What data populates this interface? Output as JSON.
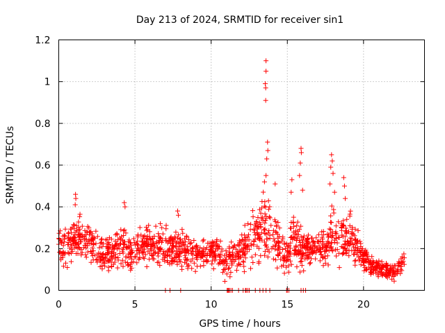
{
  "chart_data": {
    "type": "scatter",
    "title": "Day 213 of 2024, SRMTID for receiver sin1",
    "xlabel": "GPS time / hours",
    "ylabel": "SRMTID / TECUs",
    "xlim": [
      0,
      24
    ],
    "ylim": [
      0,
      1.2
    ],
    "x_ticks": [
      0,
      5,
      10,
      15,
      20
    ],
    "x_tick_labels": [
      "0",
      "5",
      "10",
      "15",
      "20"
    ],
    "y_ticks": [
      0,
      0.2,
      0.4,
      0.6,
      0.8,
      1.0,
      1.2
    ],
    "y_tick_labels": [
      "0",
      "0.2",
      "0.4",
      "0.6",
      "0.8",
      "1",
      "1.2"
    ],
    "grid": true,
    "marker": "+",
    "series": [
      {
        "name": "sin1",
        "color": "#ff0000",
        "profile": {
          "hours": [
            0,
            0.5,
            1.0,
            1.2,
            1.5,
            2.0,
            2.5,
            3.0,
            3.5,
            4.0,
            4.3,
            4.6,
            5.0,
            5.5,
            6.0,
            6.5,
            7.0,
            7.5,
            8.0,
            8.5,
            9.0,
            9.5,
            10.0,
            10.5,
            11.0,
            11.5,
            12.0,
            12.5,
            13.0,
            13.3,
            13.6,
            13.9,
            14.2,
            14.5,
            14.8,
            15.0,
            15.3,
            15.6,
            15.9,
            16.2,
            16.5,
            17.0,
            17.5,
            17.9,
            18.3,
            18.7,
            19.0,
            19.5,
            20.0,
            20.5,
            21.0,
            21.5,
            22.0,
            22.5,
            22.7
          ],
          "median": [
            0.2,
            0.22,
            0.26,
            0.28,
            0.26,
            0.24,
            0.2,
            0.18,
            0.18,
            0.2,
            0.22,
            0.17,
            0.2,
            0.22,
            0.21,
            0.2,
            0.21,
            0.2,
            0.2,
            0.19,
            0.18,
            0.18,
            0.19,
            0.19,
            0.12,
            0.17,
            0.2,
            0.22,
            0.26,
            0.3,
            0.34,
            0.3,
            0.26,
            0.2,
            0.16,
            0.18,
            0.24,
            0.22,
            0.2,
            0.2,
            0.2,
            0.2,
            0.22,
            0.28,
            0.26,
            0.24,
            0.26,
            0.22,
            0.16,
            0.12,
            0.11,
            0.1,
            0.09,
            0.12,
            0.14
          ],
          "spread": [
            0.06,
            0.06,
            0.06,
            0.07,
            0.06,
            0.05,
            0.06,
            0.06,
            0.05,
            0.06,
            0.08,
            0.06,
            0.05,
            0.06,
            0.06,
            0.06,
            0.07,
            0.06,
            0.06,
            0.05,
            0.05,
            0.05,
            0.05,
            0.05,
            0.05,
            0.06,
            0.06,
            0.07,
            0.08,
            0.1,
            0.12,
            0.1,
            0.1,
            0.08,
            0.06,
            0.07,
            0.08,
            0.08,
            0.07,
            0.06,
            0.05,
            0.05,
            0.06,
            0.09,
            0.09,
            0.08,
            0.08,
            0.07,
            0.04,
            0.03,
            0.03,
            0.03,
            0.03,
            0.03,
            0.03
          ],
          "samples": 1500,
          "seed": 213
        },
        "peaks": [
          {
            "x": 1.1,
            "y": 0.46
          },
          {
            "x": 1.12,
            "y": 0.44
          },
          {
            "x": 1.08,
            "y": 0.41
          },
          {
            "x": 4.3,
            "y": 0.42
          },
          {
            "x": 4.35,
            "y": 0.4
          },
          {
            "x": 7.8,
            "y": 0.38
          },
          {
            "x": 7.85,
            "y": 0.36
          },
          {
            "x": 13.6,
            "y": 1.1
          },
          {
            "x": 13.6,
            "y": 1.05
          },
          {
            "x": 13.55,
            "y": 0.99
          },
          {
            "x": 13.58,
            "y": 0.97
          },
          {
            "x": 13.58,
            "y": 0.91
          },
          {
            "x": 13.7,
            "y": 0.71
          },
          {
            "x": 13.72,
            "y": 0.67
          },
          {
            "x": 13.65,
            "y": 0.63
          },
          {
            "x": 13.6,
            "y": 0.55
          },
          {
            "x": 13.5,
            "y": 0.52
          },
          {
            "x": 14.2,
            "y": 0.51
          },
          {
            "x": 15.3,
            "y": 0.53
          },
          {
            "x": 15.25,
            "y": 0.47
          },
          {
            "x": 15.9,
            "y": 0.68
          },
          {
            "x": 15.92,
            "y": 0.66
          },
          {
            "x": 15.85,
            "y": 0.61
          },
          {
            "x": 15.8,
            "y": 0.55
          },
          {
            "x": 16.0,
            "y": 0.48
          },
          {
            "x": 17.9,
            "y": 0.65
          },
          {
            "x": 17.95,
            "y": 0.62
          },
          {
            "x": 17.85,
            "y": 0.59
          },
          {
            "x": 18.0,
            "y": 0.56
          },
          {
            "x": 17.8,
            "y": 0.51
          },
          {
            "x": 18.1,
            "y": 0.47
          },
          {
            "x": 18.7,
            "y": 0.54
          },
          {
            "x": 18.75,
            "y": 0.5
          },
          {
            "x": 18.8,
            "y": 0.44
          }
        ],
        "zero_values_at_hours": [
          7.0,
          7.3,
          8.0,
          11.05,
          11.1,
          11.15,
          11.2,
          11.3,
          11.4,
          11.8,
          12.1,
          12.25,
          12.3,
          12.4,
          12.5,
          12.9,
          13.2,
          13.4,
          13.6,
          13.85,
          14.95,
          15.0,
          15.1,
          15.9,
          16.05,
          16.2
        ]
      }
    ]
  }
}
